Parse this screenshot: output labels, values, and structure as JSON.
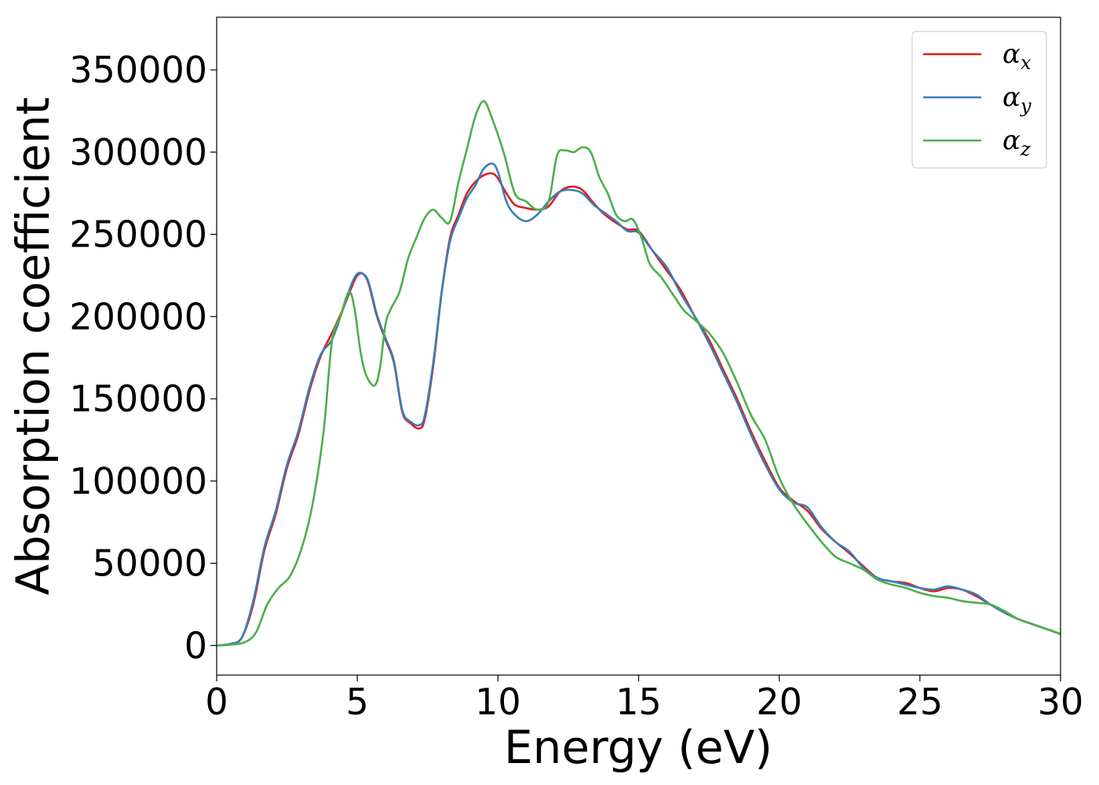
{
  "chart_data": {
    "type": "line",
    "xlabel": "Energy (eV)",
    "ylabel": "Absorption coefficient",
    "xlim": [
      0,
      30
    ],
    "ylim": [
      -18000,
      382000
    ],
    "xticks": [
      0,
      5,
      10,
      15,
      20,
      25,
      30
    ],
    "xtick_labels": [
      "0",
      "5",
      "10",
      "15",
      "20",
      "25",
      "30"
    ],
    "yticks": [
      0,
      50000,
      100000,
      150000,
      200000,
      250000,
      300000,
      350000
    ],
    "ytick_labels": [
      "0",
      "50000",
      "100000",
      "150000",
      "200000",
      "250000",
      "300000",
      "350000"
    ],
    "grid": false,
    "legend_position": "top-right",
    "series": [
      {
        "name": "α",
        "subscript": "x",
        "color": "#e41a1c",
        "x": [
          0,
          0.5,
          0.9,
          1.3,
          1.7,
          2.1,
          2.5,
          2.9,
          3.3,
          3.7,
          4.1,
          4.5,
          4.8,
          5.0,
          5.2,
          5.4,
          5.7,
          6.0,
          6.3,
          6.6,
          6.9,
          7.2,
          7.4,
          7.7,
          8.0,
          8.3,
          8.6,
          8.9,
          9.2,
          9.5,
          9.8,
          10.0,
          10.3,
          10.6,
          11.0,
          11.4,
          11.8,
          12.2,
          12.6,
          13.0,
          13.4,
          13.8,
          14.2,
          14.6,
          15.0,
          15.5,
          16.0,
          16.5,
          17.0,
          17.5,
          18.0,
          18.5,
          19.0,
          19.5,
          20.0,
          20.5,
          21.0,
          21.5,
          22.0,
          22.5,
          23.0,
          23.5,
          24.0,
          24.5,
          25.0,
          25.5,
          26.0,
          26.5,
          27.0,
          27.5,
          28.0,
          28.5,
          29.0,
          29.5,
          30.0
        ],
        "y": [
          0,
          1000,
          5000,
          25000,
          58000,
          80000,
          108000,
          128000,
          155000,
          176000,
          190000,
          205000,
          218000,
          225000,
          226000,
          220000,
          200000,
          186000,
          172000,
          142000,
          135000,
          132000,
          138000,
          170000,
          215000,
          248000,
          262000,
          275000,
          282000,
          286000,
          287000,
          284000,
          275000,
          268000,
          266000,
          265000,
          267000,
          276000,
          279000,
          277000,
          269000,
          262000,
          257000,
          253000,
          252000,
          240000,
          228000,
          216000,
          200000,
          186000,
          168000,
          150000,
          130000,
          112000,
          96000,
          88000,
          82000,
          71000,
          63000,
          56000,
          48000,
          41000,
          39000,
          38000,
          35000,
          33000,
          35000,
          34000,
          30000,
          25000,
          20000,
          16000,
          13000,
          10000,
          7000
        ]
      },
      {
        "name": "α",
        "subscript": "y",
        "color": "#377eb8",
        "x": [
          0,
          0.5,
          0.9,
          1.3,
          1.7,
          2.1,
          2.5,
          2.9,
          3.3,
          3.7,
          4.1,
          4.5,
          4.8,
          5.0,
          5.2,
          5.4,
          5.7,
          6.0,
          6.3,
          6.6,
          6.9,
          7.2,
          7.4,
          7.7,
          8.0,
          8.3,
          8.6,
          8.9,
          9.2,
          9.5,
          9.8,
          10.0,
          10.3,
          10.6,
          11.0,
          11.4,
          11.8,
          12.2,
          12.6,
          13.0,
          13.4,
          13.8,
          14.2,
          14.6,
          15.0,
          15.5,
          16.0,
          16.5,
          17.0,
          17.5,
          18.0,
          18.5,
          19.0,
          19.5,
          20.0,
          20.5,
          21.0,
          21.5,
          22.0,
          22.5,
          23.0,
          23.5,
          24.0,
          24.5,
          25.0,
          25.5,
          26.0,
          26.5,
          27.0,
          27.5,
          28.0,
          28.5,
          29.0,
          29.5,
          30.0
        ],
        "y": [
          0,
          1000,
          5000,
          27000,
          60000,
          82000,
          110000,
          130000,
          157000,
          177000,
          186000,
          205000,
          220000,
          226000,
          226000,
          221000,
          201000,
          187000,
          173000,
          143000,
          136000,
          134000,
          140000,
          172000,
          215000,
          246000,
          260000,
          272000,
          280000,
          290000,
          293000,
          288000,
          270000,
          262000,
          258000,
          262000,
          270000,
          276000,
          277000,
          275000,
          268000,
          263000,
          258000,
          252000,
          251000,
          240000,
          230000,
          214000,
          200000,
          184000,
          166000,
          148000,
          128000,
          110000,
          95000,
          87000,
          84000,
          72000,
          63000,
          57000,
          47000,
          41000,
          39000,
          37000,
          35000,
          34000,
          36000,
          34000,
          31000,
          25000,
          20000,
          16000,
          13000,
          10000,
          7000
        ]
      },
      {
        "name": "α",
        "subscript": "z",
        "color": "#4daf4a",
        "x": [
          0,
          0.5,
          1.0,
          1.4,
          1.8,
          2.2,
          2.6,
          3.0,
          3.4,
          3.8,
          4.1,
          4.4,
          4.7,
          4.9,
          5.1,
          5.3,
          5.6,
          5.8,
          6.0,
          6.2,
          6.5,
          6.8,
          7.1,
          7.4,
          7.7,
          8.0,
          8.3,
          8.6,
          8.9,
          9.2,
          9.5,
          9.8,
          10.2,
          10.6,
          11.0,
          11.4,
          11.8,
          12.1,
          12.4,
          12.7,
          13.0,
          13.3,
          13.6,
          13.9,
          14.2,
          14.5,
          14.8,
          15.1,
          15.4,
          15.8,
          16.2,
          16.6,
          17.0,
          17.5,
          18.0,
          18.5,
          19.0,
          19.5,
          20.0,
          20.5,
          21.0,
          21.5,
          22.0,
          22.5,
          23.0,
          23.5,
          24.0,
          24.5,
          25.0,
          25.5,
          26.0,
          26.5,
          27.0,
          27.5,
          28.0,
          28.5,
          29.0,
          29.5,
          30.0
        ],
        "y": [
          0,
          500,
          2000,
          8000,
          25000,
          35000,
          42000,
          58000,
          85000,
          130000,
          185000,
          200000,
          215000,
          205000,
          180000,
          165000,
          158000,
          168000,
          195000,
          205000,
          215000,
          235000,
          248000,
          260000,
          265000,
          260000,
          258000,
          282000,
          302000,
          322000,
          331000,
          320000,
          300000,
          275000,
          270000,
          265000,
          270000,
          298000,
          301000,
          300000,
          303000,
          300000,
          285000,
          275000,
          262000,
          258000,
          259000,
          248000,
          232000,
          224000,
          214000,
          204000,
          198000,
          190000,
          178000,
          160000,
          140000,
          125000,
          102000,
          86000,
          74000,
          63000,
          54000,
          50000,
          46000,
          40000,
          37000,
          35000,
          32000,
          30000,
          29000,
          27000,
          26000,
          25000,
          21000,
          16000,
          13000,
          10000,
          7000
        ]
      }
    ]
  }
}
